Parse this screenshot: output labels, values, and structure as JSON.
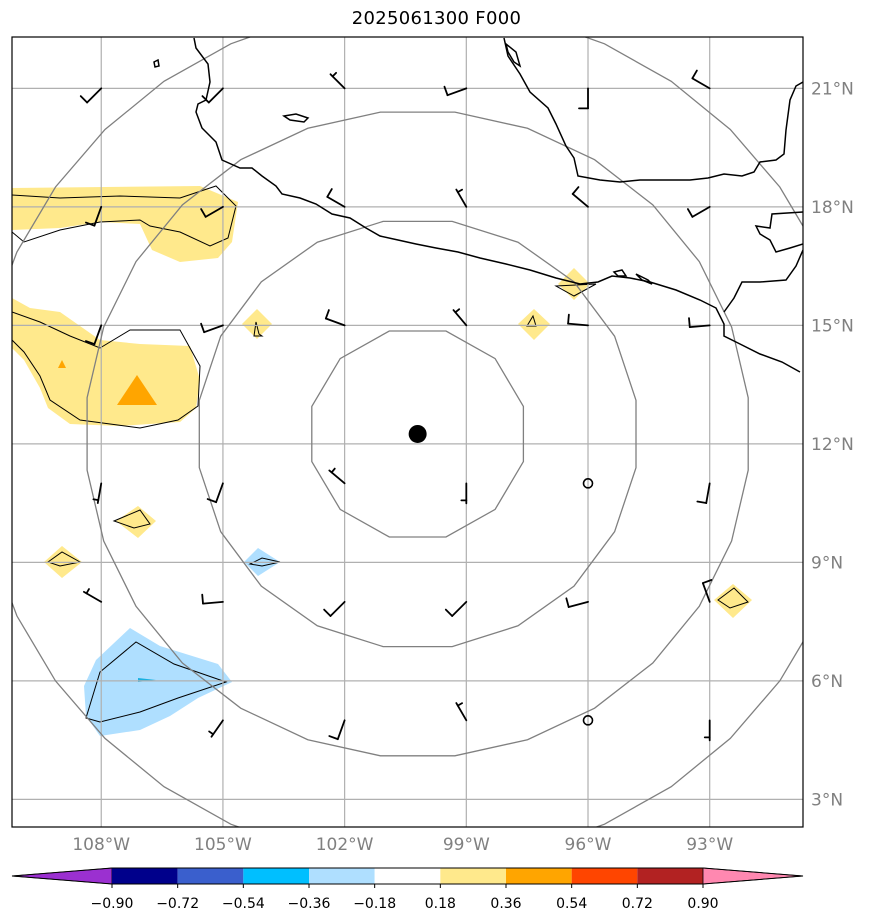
{
  "title": "2025061300 F000",
  "map": {
    "lon_range": [
      -110.2,
      -90.7
    ],
    "lat_range": [
      2.3,
      22.3
    ],
    "lon_ticks": [
      -108,
      -105,
      -102,
      -99,
      -96,
      -93
    ],
    "lon_labels": [
      "108°W",
      "105°W",
      "102°W",
      "99°W",
      "96°W",
      "93°W"
    ],
    "lat_ticks": [
      3,
      6,
      9,
      12,
      15,
      18,
      21
    ],
    "lat_labels": [
      "3°N",
      "6°N",
      "9°N",
      "12°N",
      "15°N",
      "18°N",
      "21°N"
    ],
    "center": {
      "lon": -100.2,
      "lat": 12.25
    },
    "range_ring_radii_deg": [
      2.7,
      5.45,
      8.2,
      10.9
    ],
    "grid_color": "#b0b0b0",
    "ring_color": "#808080",
    "coast_color": "#000000"
  },
  "colorbar": {
    "ticks": [
      "−0.90",
      "−0.72",
      "−0.54",
      "−0.36",
      "−0.18",
      "0.18",
      "0.36",
      "0.54",
      "0.72",
      "0.90"
    ],
    "colors": [
      "#9b30d0",
      "#00008b",
      "#3a5fcd",
      "#00bfff",
      "#afdfff",
      "#ffffff",
      "#ffe98c",
      "#ffa500",
      "#ff4500",
      "#b22222",
      "#ff88b0"
    ]
  },
  "shading": {
    "positive_light": "#ffe98c",
    "positive_dark": "#ffa500",
    "negative_light": "#afdfff",
    "negative_dark": "#1ab0e0"
  },
  "wind_barbs": [
    {
      "lon": -108,
      "lat": 21,
      "dir": 225,
      "speed": 10
    },
    {
      "lon": -105,
      "lat": 21,
      "dir": 225,
      "speed": 10
    },
    {
      "lon": -102,
      "lat": 21,
      "dir": 315,
      "speed": 5
    },
    {
      "lon": -99,
      "lat": 21,
      "dir": 250,
      "speed": 10
    },
    {
      "lon": -96,
      "lat": 21,
      "dir": 180,
      "speed": 10
    },
    {
      "lon": -93,
      "lat": 21,
      "dir": 300,
      "speed": 10
    },
    {
      "lon": -108,
      "lat": 18,
      "dir": 200,
      "speed": 10
    },
    {
      "lon": -105,
      "lat": 18,
      "dir": 240,
      "speed": 10
    },
    {
      "lon": -102,
      "lat": 18,
      "dir": 300,
      "speed": 10
    },
    {
      "lon": -99,
      "lat": 18,
      "dir": 330,
      "speed": 5
    },
    {
      "lon": -96,
      "lat": 18,
      "dir": 310,
      "speed": 10
    },
    {
      "lon": -93,
      "lat": 18,
      "dir": 240,
      "speed": 10
    },
    {
      "lon": -108,
      "lat": 15,
      "dir": 200,
      "speed": 10
    },
    {
      "lon": -105,
      "lat": 15,
      "dir": 250,
      "speed": 10
    },
    {
      "lon": -102,
      "lat": 15,
      "dir": 290,
      "speed": 10
    },
    {
      "lon": -99,
      "lat": 15,
      "dir": 320,
      "speed": 5
    },
    {
      "lon": -96,
      "lat": 15,
      "dir": 275,
      "speed": 10
    },
    {
      "lon": -93,
      "lat": 15,
      "dir": 265,
      "speed": 10
    },
    {
      "lon": -108,
      "lat": 11,
      "dir": 190,
      "speed": 5
    },
    {
      "lon": -105,
      "lat": 11,
      "dir": 200,
      "speed": 10
    },
    {
      "lon": -102,
      "lat": 11,
      "dir": 310,
      "speed": 5
    },
    {
      "lon": -99,
      "lat": 11,
      "dir": 180,
      "speed": 5
    },
    {
      "lon": -96,
      "lat": 11,
      "dir": 0,
      "speed": 0
    },
    {
      "lon": -93,
      "lat": 11,
      "dir": 190,
      "speed": 10
    },
    {
      "lon": -108,
      "lat": 8,
      "dir": 300,
      "speed": 5
    },
    {
      "lon": -105,
      "lat": 8,
      "dir": 265,
      "speed": 10
    },
    {
      "lon": -102,
      "lat": 8,
      "dir": 225,
      "speed": 10
    },
    {
      "lon": -99,
      "lat": 8,
      "dir": 225,
      "speed": 10
    },
    {
      "lon": -96,
      "lat": 8,
      "dir": 255,
      "speed": 10
    },
    {
      "lon": -93,
      "lat": 8,
      "dir": 340,
      "speed": 10
    },
    {
      "lon": -105,
      "lat": 5,
      "dir": 215,
      "speed": 5
    },
    {
      "lon": -102,
      "lat": 5,
      "dir": 200,
      "speed": 10
    },
    {
      "lon": -99,
      "lat": 5,
      "dir": 330,
      "speed": 5
    },
    {
      "lon": -96,
      "lat": 5,
      "dir": 0,
      "speed": 0
    },
    {
      "lon": -93,
      "lat": 5,
      "dir": 180,
      "speed": 5
    }
  ]
}
